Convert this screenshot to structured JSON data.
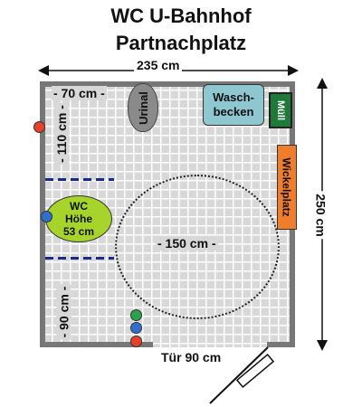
{
  "title_line1": "WC U-Bahnhof",
  "title_line2": "Partnachplatz",
  "dimensions": {
    "width": "235 cm",
    "height": "250 cm",
    "top_left_width": "- 70 cm -",
    "left_upper": "- 110 cm -",
    "left_lower": "- 90 cm -",
    "turning_circle": "- 150 cm -",
    "door": "Tür 90 cm"
  },
  "fixtures": {
    "urinal": "Urinal",
    "sink_line1": "Wasch-",
    "sink_line2": "becken",
    "trash": "Müll",
    "changing_table": "Wickelplatz",
    "wc_line1": "WC",
    "wc_line2": "Höhe",
    "wc_line3": "53 cm"
  },
  "colors": {
    "red_dot": "#e8402a",
    "blue_dot": "#2f6fd0",
    "green_dot": "#2aa34a",
    "wc": "#a6d42a",
    "sink": "#8ec7cf",
    "trash": "#1f7a3a",
    "changing": "#f07d2b",
    "urinal": "#8a8a8a"
  }
}
